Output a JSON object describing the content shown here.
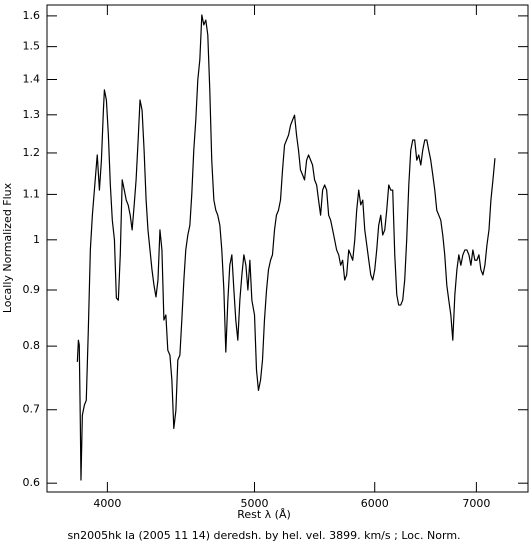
{
  "chart_data": {
    "type": "line",
    "title": "sn2005hk Ia (2005 11 14) deredsh. by hel. vel.  3899. km/s ;  Loc. Norm.",
    "x_label": "Rest λ (Å)",
    "y_label": "Locally Normalized Flux",
    "xscale": "log",
    "yscale": "log",
    "xlim": [
      3650,
      7570
    ],
    "ylim": [
      0.589,
      1.637
    ],
    "xticks": [
      4000,
      5000,
      6000,
      7000
    ],
    "yticks": [
      0.6,
      0.7,
      0.8,
      0.9,
      1,
      1.1,
      1.2,
      1.3,
      1.4,
      1.5,
      1.6
    ],
    "series": [
      {
        "color": "#000000",
        "x": [
          3822,
          3828,
          3833,
          3839,
          3843,
          3851,
          3863,
          3874,
          3886,
          3898,
          3910,
          3922,
          3934,
          3939,
          3952,
          3964,
          3976,
          3982,
          3994,
          4006,
          4018,
          4030,
          4043,
          4055,
          4067,
          4079,
          4091,
          4104,
          4116,
          4128,
          4141,
          4153,
          4166,
          4178,
          4191,
          4203,
          4216,
          4229,
          4242,
          4254,
          4267,
          4280,
          4293,
          4306,
          4319,
          4332,
          4345,
          4358,
          4371,
          4384,
          4398,
          4411,
          4424,
          4438,
          4451,
          4465,
          4478,
          4492,
          4505,
          4519,
          4533,
          4546,
          4560,
          4574,
          4588,
          4602,
          4616,
          4630,
          4644,
          4658,
          4672,
          4686,
          4701,
          4715,
          4729,
          4744,
          4758,
          4773,
          4787,
          4802,
          4816,
          4831,
          4846,
          4860,
          4875,
          4890,
          4905,
          4920,
          4935,
          4950,
          4965,
          4980,
          5000,
          5015,
          5030,
          5046,
          5061,
          5076,
          5092,
          5107,
          5123,
          5138,
          5154,
          5169,
          5185,
          5201,
          5217,
          5233,
          5249,
          5265,
          5281,
          5297,
          5313,
          5329,
          5345,
          5361,
          5378,
          5394,
          5411,
          5427,
          5444,
          5460,
          5477,
          5494,
          5510,
          5527,
          5544,
          5561,
          5578,
          5595,
          5612,
          5629,
          5646,
          5663,
          5681,
          5698,
          5715,
          5733,
          5750,
          5768,
          5785,
          5803,
          5821,
          5838,
          5856,
          5874,
          5892,
          5910,
          5928,
          5946,
          5964,
          5982,
          6000,
          6018,
          6036,
          6055,
          6073,
          6092,
          6110,
          6129,
          6147,
          6166,
          6185,
          6204,
          6222,
          6241,
          6260,
          6279,
          6298,
          6318,
          6337,
          6356,
          6375,
          6395,
          6414,
          6434,
          6453,
          6473,
          6493,
          6512,
          6532,
          6552,
          6572,
          6592,
          6612,
          6632,
          6652,
          6672,
          6693,
          6713,
          6734,
          6754,
          6775,
          6796,
          6816,
          6837,
          6858,
          6879,
          6900,
          6921,
          6942,
          6963,
          6984,
          7005,
          7027,
          7048,
          7070,
          7091,
          7113,
          7135,
          7156,
          7178,
          7200
        ],
        "values": [
          0.774,
          0.81,
          0.802,
          0.685,
          0.604,
          0.692,
          0.707,
          0.714,
          0.827,
          0.979,
          1.053,
          1.11,
          1.17,
          1.195,
          1.11,
          1.182,
          1.313,
          1.37,
          1.341,
          1.246,
          1.122,
          1.042,
          1.0,
          0.885,
          0.881,
          0.969,
          1.134,
          1.11,
          1.087,
          1.076,
          1.053,
          1.021,
          1.076,
          1.134,
          1.233,
          1.341,
          1.313,
          1.207,
          1.087,
          1.021,
          0.979,
          0.939,
          0.909,
          0.887,
          0.919,
          1.021,
          0.979,
          0.845,
          0.854,
          0.793,
          0.785,
          0.745,
          0.673,
          0.699,
          0.777,
          0.785,
          0.845,
          0.919,
          0.979,
          1.01,
          1.031,
          1.099,
          1.207,
          1.286,
          1.399,
          1.459,
          1.603,
          1.57,
          1.586,
          1.537,
          1.37,
          1.182,
          1.087,
          1.064,
          1.053,
          1.031,
          0.979,
          0.9,
          0.79,
          0.881,
          0.948,
          0.969,
          0.9,
          0.845,
          0.81,
          0.881,
          0.929,
          0.969,
          0.948,
          0.9,
          0.958,
          0.881,
          0.854,
          0.761,
          0.729,
          0.745,
          0.777,
          0.845,
          0.9,
          0.939,
          0.958,
          0.969,
          1.021,
          1.053,
          1.064,
          1.087,
          1.158,
          1.22,
          1.233,
          1.246,
          1.272,
          1.286,
          1.299,
          1.246,
          1.207,
          1.158,
          1.146,
          1.134,
          1.182,
          1.195,
          1.182,
          1.17,
          1.134,
          1.122,
          1.087,
          1.053,
          1.11,
          1.122,
          1.11,
          1.053,
          1.042,
          1.021,
          1.0,
          0.979,
          0.969,
          0.948,
          0.958,
          0.919,
          0.929,
          0.979,
          0.969,
          0.958,
          1.0,
          1.064,
          1.11,
          1.076,
          1.087,
          1.021,
          0.989,
          0.958,
          0.929,
          0.919,
          0.939,
          0.979,
          1.031,
          1.053,
          1.01,
          1.021,
          1.064,
          1.122,
          1.11,
          1.11,
          0.969,
          0.891,
          0.872,
          0.872,
          0.881,
          0.919,
          1.0,
          1.122,
          1.207,
          1.233,
          1.233,
          1.182,
          1.195,
          1.17,
          1.207,
          1.233,
          1.233,
          1.207,
          1.182,
          1.146,
          1.11,
          1.064,
          1.053,
          1.042,
          1.01,
          0.969,
          0.909,
          0.881,
          0.854,
          0.81,
          0.891,
          0.939,
          0.969,
          0.948,
          0.969,
          0.979,
          0.979,
          0.969,
          0.948,
          0.979,
          0.958,
          0.958,
          0.969,
          0.939,
          0.929,
          0.948,
          0.989,
          1.021,
          1.087,
          1.134,
          1.187
        ]
      }
    ]
  }
}
